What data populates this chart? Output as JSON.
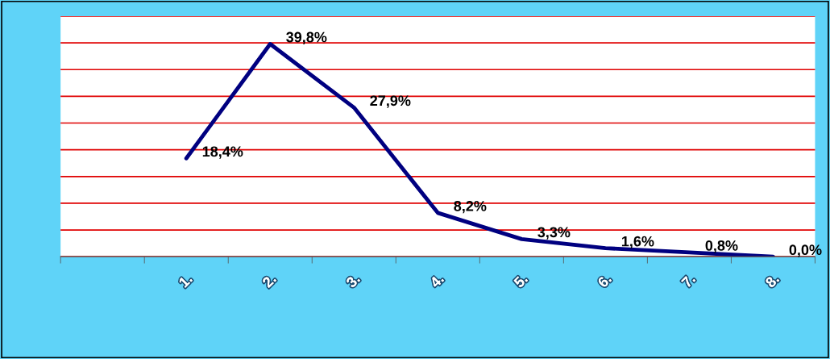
{
  "chart_data": {
    "type": "line",
    "categories": [
      null,
      "1.",
      "2.",
      "3.",
      "4.",
      "5.",
      "6.",
      "7.",
      "8."
    ],
    "series": [
      {
        "color": "#000080",
        "values": [
          null,
          18.4,
          39.8,
          27.9,
          8.2,
          3.3,
          1.6,
          0.8,
          0.0
        ],
        "value_labels": [
          null,
          "18,4%",
          "39,8%",
          "27,9%",
          "8,2%",
          "3,3%",
          "1,6%",
          "0,8%",
          "0,0%"
        ]
      }
    ],
    "ylim": [
      0,
      45
    ],
    "yticks": [
      {
        "value": 0,
        "label": null
      },
      {
        "value": 5,
        "label": null
      },
      {
        "value": 10,
        "label": null
      },
      {
        "value": 15,
        "label": null
      },
      {
        "value": 20,
        "label": null
      },
      {
        "value": 25,
        "label": null
      },
      {
        "value": 30,
        "label": null
      },
      {
        "value": 35,
        "label": null
      },
      {
        "value": 40,
        "label": null
      },
      {
        "value": 45,
        "label": null
      }
    ],
    "grid": "y",
    "tick_labels": "x",
    "marker": "none",
    "line_style": "solid"
  }
}
